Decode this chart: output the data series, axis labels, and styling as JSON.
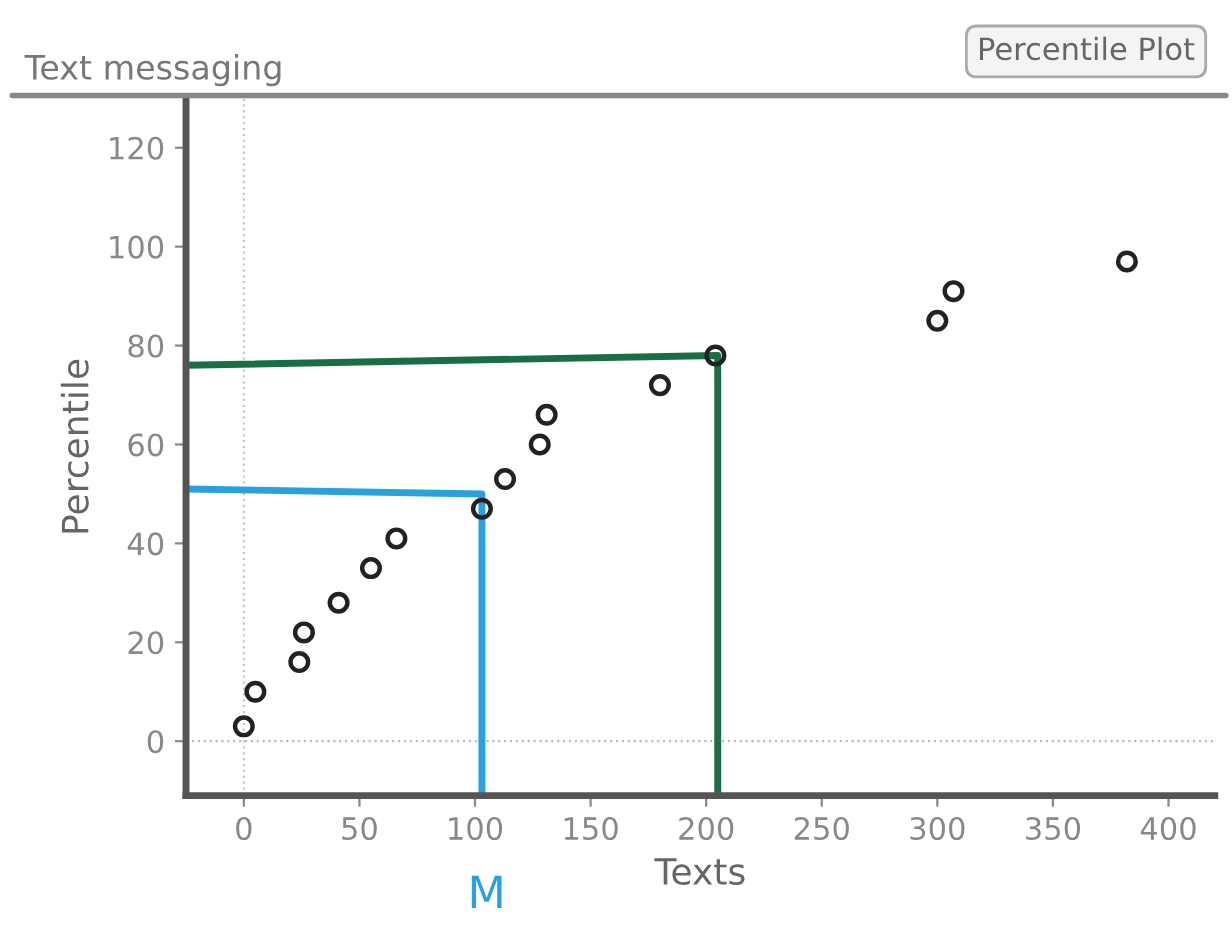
{
  "chart_data": {
    "type": "scatter",
    "title": "Text messaging",
    "xlabel": "Texts",
    "ylabel": "Percentile",
    "annotations": [
      "Percentile Plot",
      "M"
    ],
    "x": [
      0,
      5,
      24,
      26,
      41,
      55,
      66,
      103,
      113,
      128,
      131,
      180,
      204,
      300,
      307,
      382
    ],
    "series": [
      {
        "color": "#222222",
        "marker": "circle",
        "values": [
          3,
          10,
          16,
          22,
          28,
          35,
          41,
          47,
          53,
          60,
          66,
          72,
          78,
          85,
          91,
          97
        ]
      },
      {
        "type": "line",
        "color": "#2aa0dc",
        "x": [
          -25,
          103,
          103
        ],
        "values": [
          51,
          50,
          -11
        ]
      },
      {
        "type": "line",
        "color": "#1a6e46",
        "x": [
          -25,
          205,
          205
        ],
        "values": [
          76,
          78,
          -11
        ]
      }
    ],
    "ref_lines": [
      {
        "axis": "x",
        "value": 0,
        "color": "#c8c8c8",
        "line_style": "dotted"
      },
      {
        "axis": "y",
        "value": 0,
        "color": "#bbbbbb",
        "line_style": "dotted"
      }
    ],
    "xlim": [
      -25,
      420
    ],
    "ylim": [
      -11,
      130
    ],
    "xticks": [
      0,
      50,
      100,
      150,
      200,
      250,
      300,
      350,
      400
    ],
    "yticks": [
      0,
      20,
      40,
      60,
      80,
      100,
      120
    ],
    "grid": false,
    "legend": false
  }
}
